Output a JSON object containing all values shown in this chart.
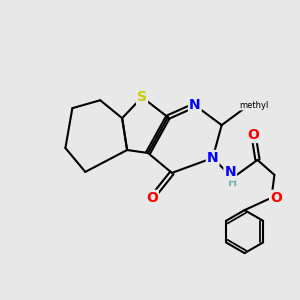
{
  "background_color": "#e8e8e8",
  "atom_colors": {
    "S": "#cccc00",
    "N": "#0000ff",
    "O": "#ff0000",
    "C": "#000000",
    "H": "#7fb3b3"
  },
  "bond_color": "#000000",
  "bond_width": 1.5,
  "figsize": [
    3.0,
    3.0
  ],
  "dpi": 100
}
